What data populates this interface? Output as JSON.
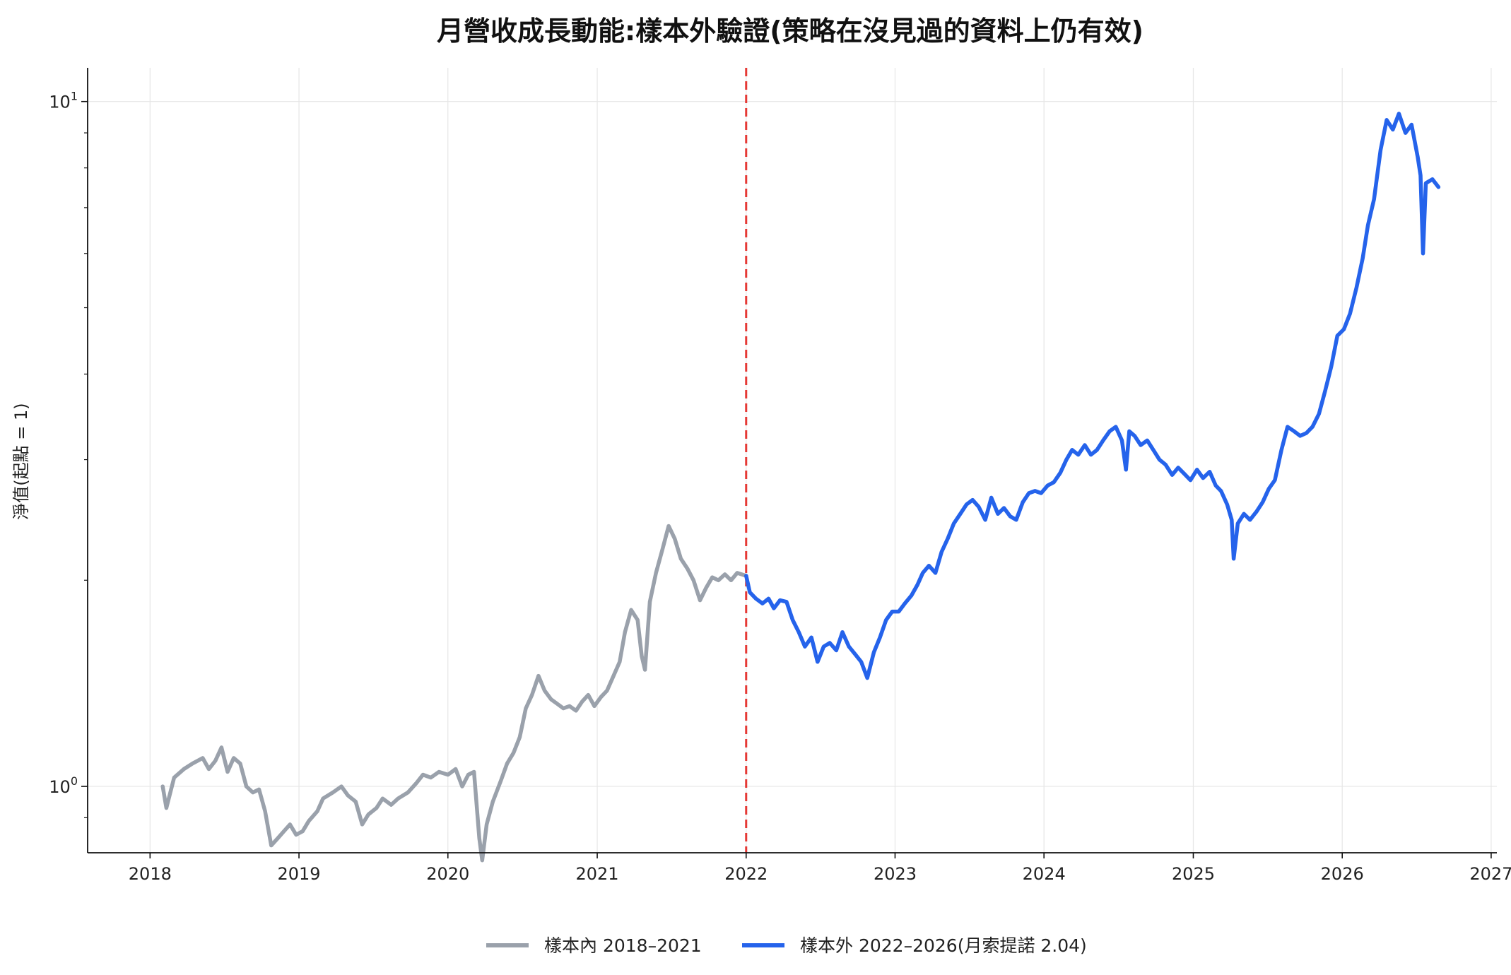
{
  "chart_data": {
    "type": "line",
    "title": "月營收成長動能:樣本外驗證(策略在沒見過的資料上仍有效)",
    "ylabel": "淨值(起點 = 1)",
    "xlabel": "",
    "y_scale": "log",
    "ylim": [
      0.8,
      11.2
    ],
    "xlim": [
      "2017-08-01",
      "2027-01-15"
    ],
    "x_ticks": [
      "2018",
      "2019",
      "2020",
      "2021",
      "2022",
      "2023",
      "2024",
      "2025",
      "2026",
      "2027"
    ],
    "y_ticks": [
      {
        "base": "10",
        "exp": "0",
        "value": 1
      },
      {
        "base": "10",
        "exp": "1",
        "value": 10
      }
    ],
    "split_date": "2022-01-01",
    "split_color": "#e53935",
    "grid": true,
    "legend_position": "bottom-center",
    "series": [
      {
        "name": "樣本內 2018–2021",
        "color": "#9aa1ab",
        "points": [
          [
            "2018-02-01",
            1.0
          ],
          [
            "2018-02-10",
            0.93
          ],
          [
            "2018-03-01",
            1.03
          ],
          [
            "2018-03-25",
            1.06
          ],
          [
            "2018-04-15",
            1.08
          ],
          [
            "2018-05-10",
            1.1
          ],
          [
            "2018-05-25",
            1.06
          ],
          [
            "2018-06-10",
            1.09
          ],
          [
            "2018-06-25",
            1.14
          ],
          [
            "2018-07-10",
            1.05
          ],
          [
            "2018-07-25",
            1.1
          ],
          [
            "2018-08-10",
            1.08
          ],
          [
            "2018-08-25",
            1.0
          ],
          [
            "2018-09-10",
            0.98
          ],
          [
            "2018-09-25",
            0.99
          ],
          [
            "2018-10-10",
            0.92
          ],
          [
            "2018-10-25",
            0.82
          ],
          [
            "2018-11-10",
            0.84
          ],
          [
            "2018-11-25",
            0.86
          ],
          [
            "2018-12-10",
            0.88
          ],
          [
            "2018-12-25",
            0.85
          ],
          [
            "2019-01-10",
            0.86
          ],
          [
            "2019-01-25",
            0.89
          ],
          [
            "2019-02-15",
            0.92
          ],
          [
            "2019-03-01",
            0.96
          ],
          [
            "2019-03-25",
            0.98
          ],
          [
            "2019-04-15",
            1.0
          ],
          [
            "2019-05-01",
            0.97
          ],
          [
            "2019-05-20",
            0.95
          ],
          [
            "2019-06-05",
            0.88
          ],
          [
            "2019-06-20",
            0.91
          ],
          [
            "2019-07-10",
            0.93
          ],
          [
            "2019-07-25",
            0.96
          ],
          [
            "2019-08-15",
            0.94
          ],
          [
            "2019-09-01",
            0.96
          ],
          [
            "2019-09-25",
            0.98
          ],
          [
            "2019-10-15",
            1.01
          ],
          [
            "2019-11-01",
            1.04
          ],
          [
            "2019-11-20",
            1.03
          ],
          [
            "2019-12-10",
            1.05
          ],
          [
            "2020-01-01",
            1.04
          ],
          [
            "2020-01-20",
            1.06
          ],
          [
            "2020-02-05",
            1.0
          ],
          [
            "2020-02-20",
            1.04
          ],
          [
            "2020-03-05",
            1.05
          ],
          [
            "2020-03-18",
            0.84
          ],
          [
            "2020-03-25",
            0.78
          ],
          [
            "2020-04-05",
            0.88
          ],
          [
            "2020-04-20",
            0.95
          ],
          [
            "2020-05-10",
            1.02
          ],
          [
            "2020-05-25",
            1.08
          ],
          [
            "2020-06-10",
            1.12
          ],
          [
            "2020-06-25",
            1.18
          ],
          [
            "2020-07-10",
            1.3
          ],
          [
            "2020-07-25",
            1.36
          ],
          [
            "2020-08-10",
            1.45
          ],
          [
            "2020-08-25",
            1.38
          ],
          [
            "2020-09-10",
            1.34
          ],
          [
            "2020-09-25",
            1.32
          ],
          [
            "2020-10-10",
            1.3
          ],
          [
            "2020-10-25",
            1.31
          ],
          [
            "2020-11-10",
            1.29
          ],
          [
            "2020-11-25",
            1.33
          ],
          [
            "2020-12-10",
            1.36
          ],
          [
            "2020-12-25",
            1.31
          ],
          [
            "2021-01-10",
            1.35
          ],
          [
            "2021-01-25",
            1.38
          ],
          [
            "2021-02-10",
            1.45
          ],
          [
            "2021-02-25",
            1.52
          ],
          [
            "2021-03-10",
            1.68
          ],
          [
            "2021-03-25",
            1.81
          ],
          [
            "2021-04-10",
            1.75
          ],
          [
            "2021-04-20",
            1.55
          ],
          [
            "2021-04-28",
            1.48
          ],
          [
            "2021-05-10",
            1.86
          ],
          [
            "2021-05-25",
            2.05
          ],
          [
            "2021-06-10",
            2.22
          ],
          [
            "2021-06-25",
            2.4
          ],
          [
            "2021-07-10",
            2.3
          ],
          [
            "2021-07-25",
            2.15
          ],
          [
            "2021-08-10",
            2.08
          ],
          [
            "2021-08-25",
            2.0
          ],
          [
            "2021-09-10",
            1.87
          ],
          [
            "2021-09-25",
            1.95
          ],
          [
            "2021-10-10",
            2.02
          ],
          [
            "2021-10-25",
            2.0
          ],
          [
            "2021-11-10",
            2.04
          ],
          [
            "2021-11-25",
            2.0
          ],
          [
            "2021-12-10",
            2.05
          ],
          [
            "2022-01-01",
            2.03
          ]
        ]
      },
      {
        "name": "樣本外 2022–2026(月索提諾 2.04)",
        "color": "#2563eb",
        "points": [
          [
            "2022-01-01",
            2.03
          ],
          [
            "2022-01-10",
            1.92
          ],
          [
            "2022-01-25",
            1.88
          ],
          [
            "2022-02-10",
            1.85
          ],
          [
            "2022-02-25",
            1.88
          ],
          [
            "2022-03-10",
            1.82
          ],
          [
            "2022-03-25",
            1.87
          ],
          [
            "2022-04-10",
            1.86
          ],
          [
            "2022-04-25",
            1.75
          ],
          [
            "2022-05-10",
            1.68
          ],
          [
            "2022-05-25",
            1.6
          ],
          [
            "2022-06-10",
            1.65
          ],
          [
            "2022-06-25",
            1.52
          ],
          [
            "2022-07-10",
            1.6
          ],
          [
            "2022-07-25",
            1.62
          ],
          [
            "2022-08-10",
            1.58
          ],
          [
            "2022-08-25",
            1.68
          ],
          [
            "2022-09-10",
            1.6
          ],
          [
            "2022-09-25",
            1.56
          ],
          [
            "2022-10-10",
            1.52
          ],
          [
            "2022-10-25",
            1.44
          ],
          [
            "2022-11-10",
            1.57
          ],
          [
            "2022-11-25",
            1.65
          ],
          [
            "2022-12-10",
            1.75
          ],
          [
            "2022-12-25",
            1.8
          ],
          [
            "2023-01-10",
            1.8
          ],
          [
            "2023-01-25",
            1.85
          ],
          [
            "2023-02-10",
            1.9
          ],
          [
            "2023-02-25",
            1.97
          ],
          [
            "2023-03-10",
            2.05
          ],
          [
            "2023-03-25",
            2.1
          ],
          [
            "2023-04-10",
            2.05
          ],
          [
            "2023-04-25",
            2.2
          ],
          [
            "2023-05-10",
            2.3
          ],
          [
            "2023-05-25",
            2.42
          ],
          [
            "2023-06-10",
            2.5
          ],
          [
            "2023-06-25",
            2.58
          ],
          [
            "2023-07-10",
            2.62
          ],
          [
            "2023-07-25",
            2.56
          ],
          [
            "2023-08-10",
            2.45
          ],
          [
            "2023-08-25",
            2.64
          ],
          [
            "2023-09-10",
            2.5
          ],
          [
            "2023-09-25",
            2.55
          ],
          [
            "2023-10-10",
            2.48
          ],
          [
            "2023-10-25",
            2.45
          ],
          [
            "2023-11-10",
            2.6
          ],
          [
            "2023-11-25",
            2.68
          ],
          [
            "2023-12-10",
            2.7
          ],
          [
            "2023-12-25",
            2.68
          ],
          [
            "2024-01-10",
            2.75
          ],
          [
            "2024-01-25",
            2.78
          ],
          [
            "2024-02-10",
            2.87
          ],
          [
            "2024-02-25",
            3.0
          ],
          [
            "2024-03-10",
            3.1
          ],
          [
            "2024-03-25",
            3.05
          ],
          [
            "2024-04-10",
            3.15
          ],
          [
            "2024-04-25",
            3.05
          ],
          [
            "2024-05-10",
            3.1
          ],
          [
            "2024-05-25",
            3.2
          ],
          [
            "2024-06-10",
            3.3
          ],
          [
            "2024-06-25",
            3.35
          ],
          [
            "2024-07-10",
            3.2
          ],
          [
            "2024-07-20",
            2.9
          ],
          [
            "2024-07-28",
            3.3
          ],
          [
            "2024-08-10",
            3.25
          ],
          [
            "2024-08-25",
            3.15
          ],
          [
            "2024-09-10",
            3.2
          ],
          [
            "2024-09-25",
            3.1
          ],
          [
            "2024-10-10",
            3.0
          ],
          [
            "2024-10-25",
            2.95
          ],
          [
            "2024-11-10",
            2.85
          ],
          [
            "2024-11-25",
            2.92
          ],
          [
            "2024-12-10",
            2.86
          ],
          [
            "2024-12-25",
            2.8
          ],
          [
            "2025-01-10",
            2.9
          ],
          [
            "2025-01-25",
            2.82
          ],
          [
            "2025-02-10",
            2.88
          ],
          [
            "2025-02-25",
            2.75
          ],
          [
            "2025-03-10",
            2.7
          ],
          [
            "2025-03-25",
            2.58
          ],
          [
            "2025-04-05",
            2.45
          ],
          [
            "2025-04-10",
            2.15
          ],
          [
            "2025-04-20",
            2.42
          ],
          [
            "2025-05-05",
            2.5
          ],
          [
            "2025-05-20",
            2.45
          ],
          [
            "2025-06-05",
            2.52
          ],
          [
            "2025-06-20",
            2.6
          ],
          [
            "2025-07-05",
            2.72
          ],
          [
            "2025-07-20",
            2.8
          ],
          [
            "2025-08-05",
            3.1
          ],
          [
            "2025-08-20",
            3.35
          ],
          [
            "2025-09-05",
            3.3
          ],
          [
            "2025-09-20",
            3.25
          ],
          [
            "2025-10-05",
            3.28
          ],
          [
            "2025-10-20",
            3.35
          ],
          [
            "2025-11-05",
            3.5
          ],
          [
            "2025-11-20",
            3.78
          ],
          [
            "2025-12-05",
            4.1
          ],
          [
            "2025-12-20",
            4.55
          ],
          [
            "2026-01-05",
            4.65
          ],
          [
            "2026-01-20",
            4.9
          ],
          [
            "2026-02-05",
            5.35
          ],
          [
            "2026-02-20",
            5.9
          ],
          [
            "2026-03-05",
            6.6
          ],
          [
            "2026-03-20",
            7.2
          ],
          [
            "2026-04-05",
            8.5
          ],
          [
            "2026-04-20",
            9.4
          ],
          [
            "2026-05-05",
            9.1
          ],
          [
            "2026-05-20",
            9.6
          ],
          [
            "2026-06-05",
            9.0
          ],
          [
            "2026-06-20",
            9.25
          ],
          [
            "2026-07-05",
            8.3
          ],
          [
            "2026-07-12",
            7.8
          ],
          [
            "2026-07-18",
            6.0
          ],
          [
            "2026-07-25",
            7.6
          ],
          [
            "2026-08-10",
            7.7
          ],
          [
            "2026-08-25",
            7.5
          ]
        ]
      }
    ]
  }
}
